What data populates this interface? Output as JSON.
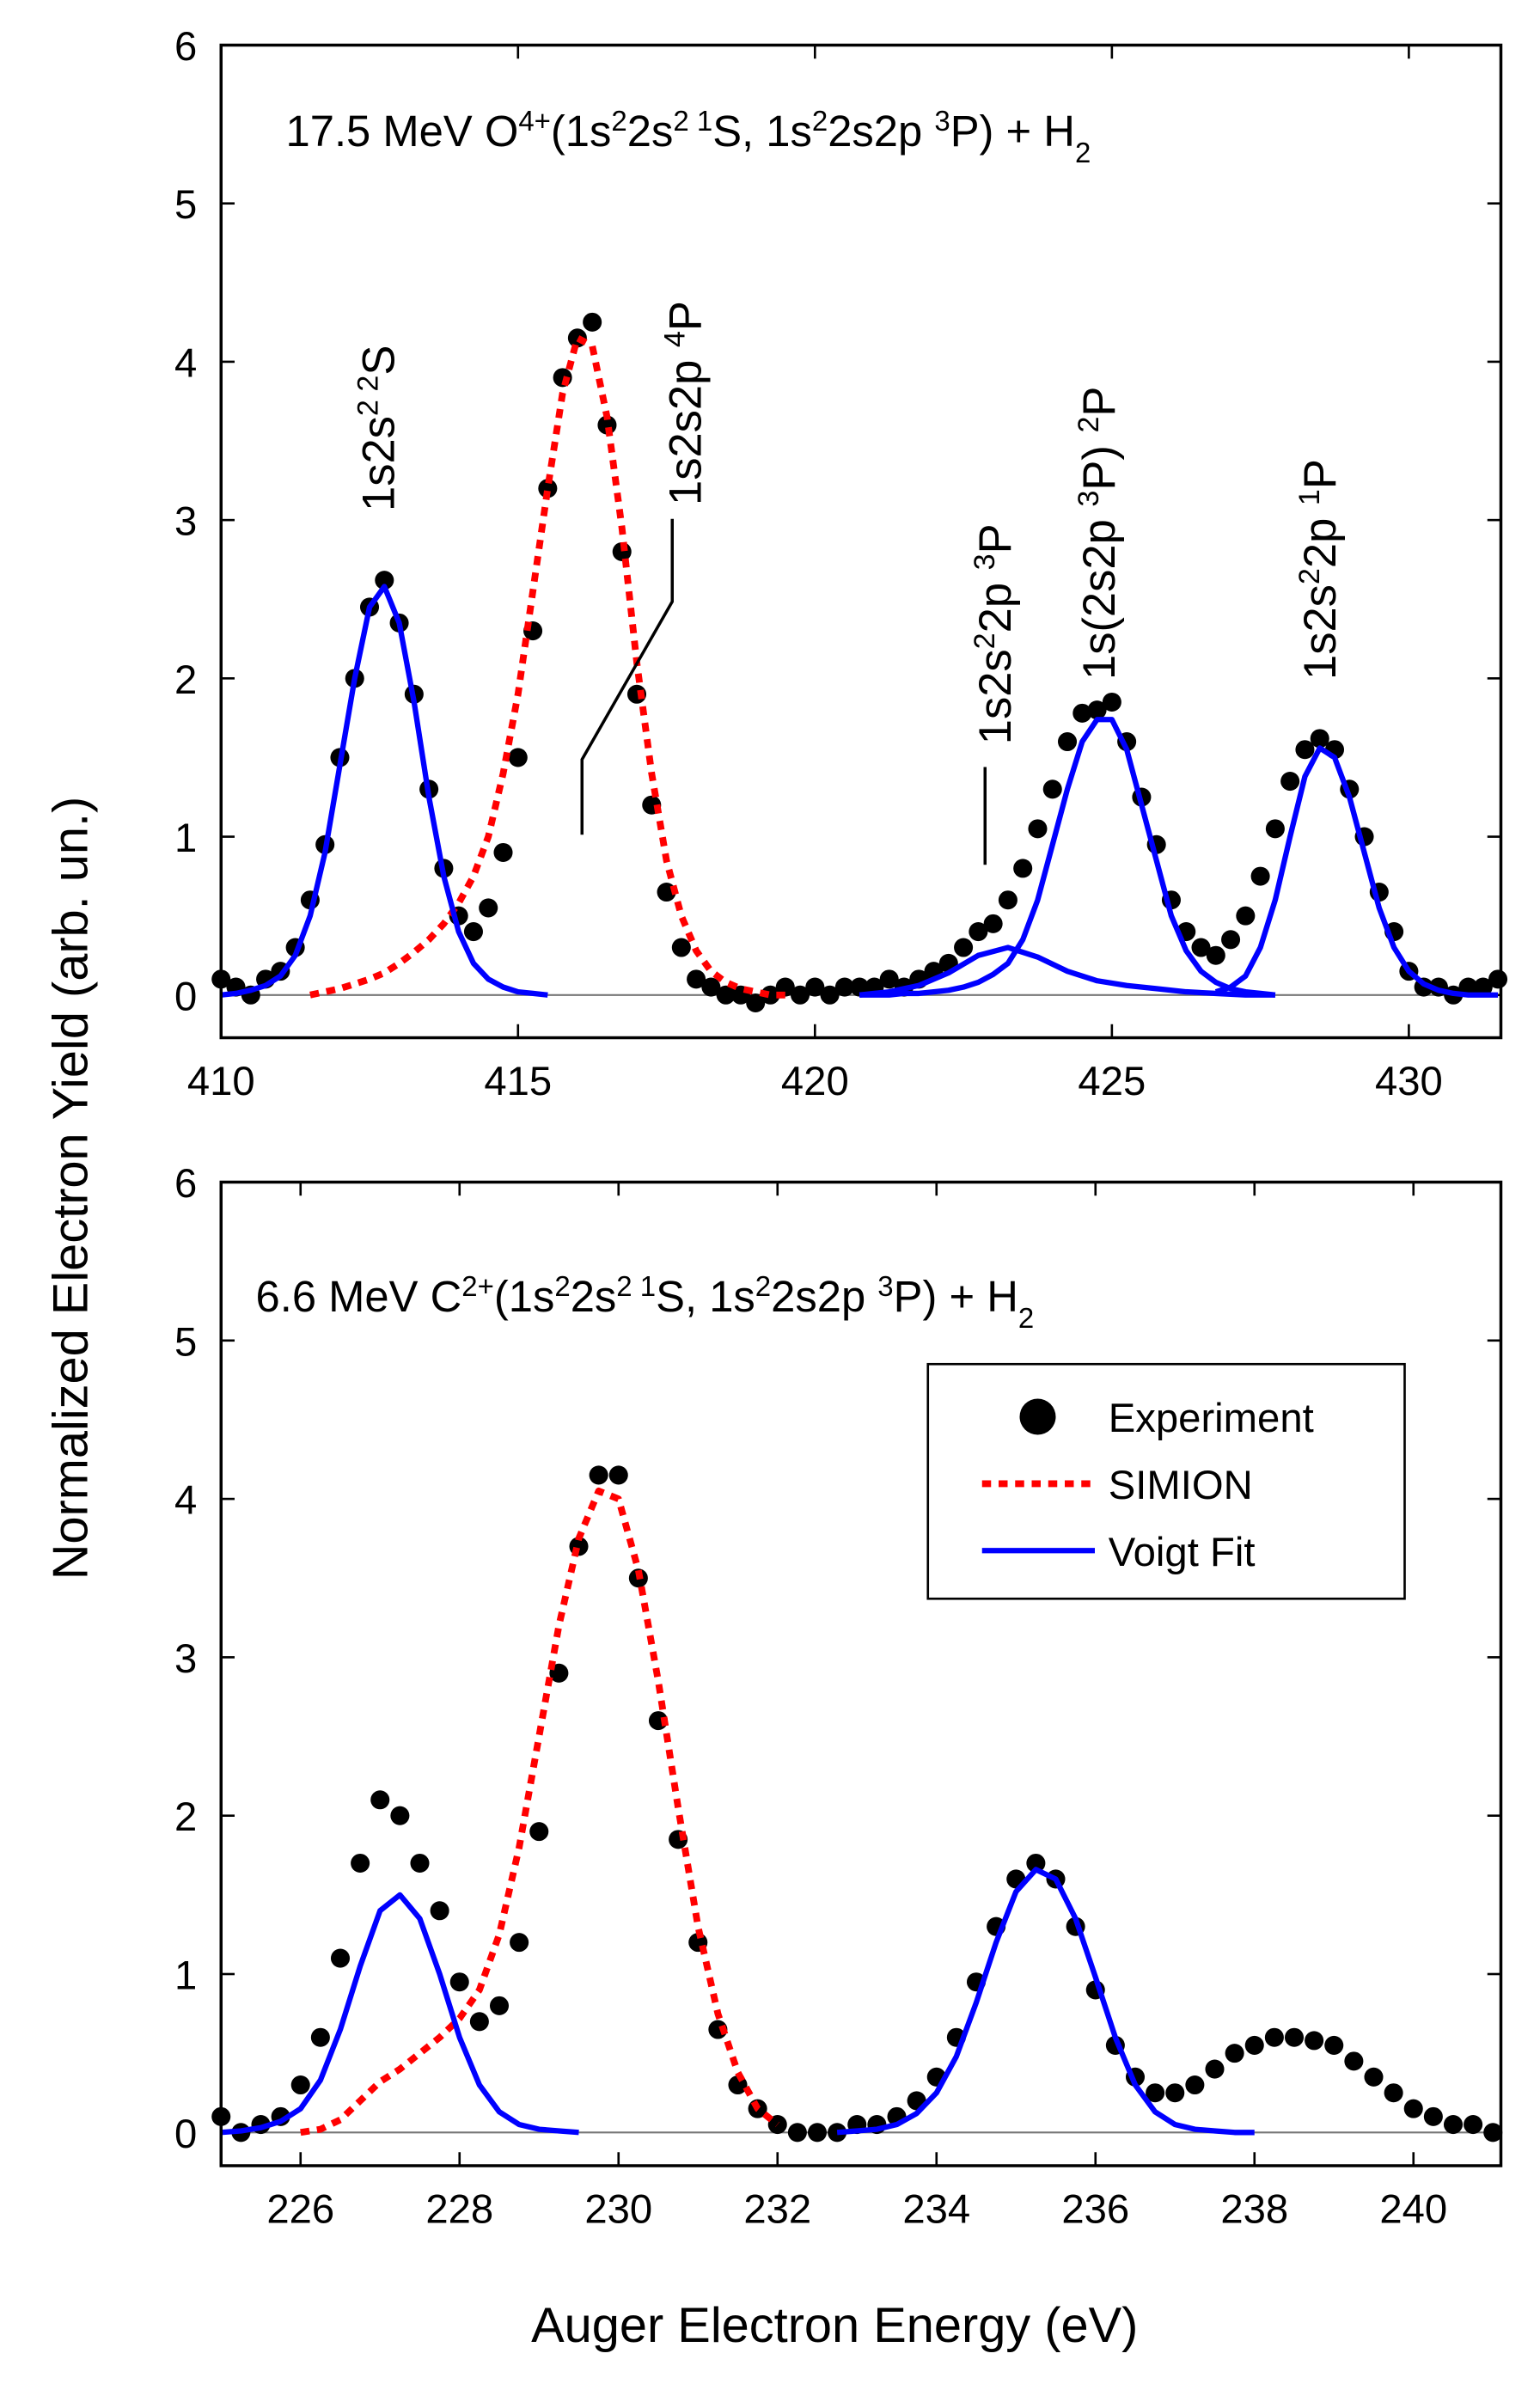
{
  "chart_data": [
    {
      "type": "line",
      "ylabel": "Normalized Electron Yield (arb. un.)",
      "title": [
        {
          "text": "17.5 MeV O"
        },
        {
          "text": "4+",
          "shift": "sup"
        },
        {
          "text": "(1s"
        },
        {
          "text": "2",
          "shift": "sup"
        },
        {
          "text": "2s"
        },
        {
          "text": "2 1",
          "shift": "sup"
        },
        {
          "text": "S, 1s"
        },
        {
          "text": "2",
          "shift": "sup"
        },
        {
          "text": "2s2p "
        },
        {
          "text": "3",
          "shift": "sup"
        },
        {
          "text": "P) + H"
        },
        {
          "text": "2",
          "shift": "sub"
        }
      ],
      "annotations": [
        [
          {
            "text": "1s2s"
          },
          {
            "text": "2 2",
            "shift": "sup"
          },
          {
            "text": "S"
          }
        ],
        [
          {
            "text": "1s2s2p "
          },
          {
            "text": "4",
            "shift": "sup"
          },
          {
            "text": "P"
          }
        ],
        [
          {
            "text": "1s2s"
          },
          {
            "text": "2",
            "shift": "sup"
          },
          {
            "text": "2p "
          },
          {
            "text": "3",
            "shift": "sup"
          },
          {
            "text": "P"
          }
        ],
        [
          {
            "text": "1s(2s2p "
          },
          {
            "text": "3",
            "shift": "sup"
          },
          {
            "text": "P) "
          },
          {
            "text": "2",
            "shift": "sup"
          },
          {
            "text": "P"
          }
        ],
        [
          {
            "text": "1s2s"
          },
          {
            "text": "2",
            "shift": "sup"
          },
          {
            "text": "2p "
          },
          {
            "text": "1",
            "shift": "sup"
          },
          {
            "text": "P"
          }
        ]
      ],
      "xlim": [
        410,
        431.55
      ],
      "xticks": [
        410,
        415,
        420,
        425,
        430
      ],
      "ylim": [
        -0.27,
        6
      ],
      "yticks": [
        0,
        1,
        2,
        3,
        4,
        5,
        6
      ],
      "zero_line": true,
      "series": [
        {
          "kind": "scatter",
          "color": "#000000",
          "x": [
            410,
            410.25,
            410.5,
            410.75,
            411,
            411.25,
            411.5,
            411.75,
            412,
            412.25,
            412.5,
            412.75,
            413,
            413.25,
            413.5,
            413.75,
            414,
            414.25,
            414.5,
            414.75,
            415,
            415.25,
            415.5,
            415.75,
            416,
            416.25,
            416.5,
            416.75,
            417,
            417.25,
            417.5,
            417.75,
            418,
            418.25,
            418.5,
            418.75,
            419,
            419.25,
            419.5,
            419.75,
            420,
            420.25,
            420.5,
            420.75,
            421,
            421.25,
            421.5,
            421.75,
            422,
            422.25,
            422.5,
            422.75,
            423,
            423.25,
            423.5,
            423.75,
            424,
            424.25,
            424.5,
            424.75,
            425,
            425.25,
            425.5,
            425.75,
            426,
            426.25,
            426.5,
            426.75,
            427,
            427.25,
            427.5,
            427.75,
            428,
            428.25,
            428.5,
            428.75,
            429,
            429.25,
            429.5,
            429.75,
            430,
            430.25,
            430.5,
            430.75,
            431,
            431.25,
            431.5
          ],
          "values": [
            0.1,
            0.05,
            0,
            0.1,
            0.15,
            0.3,
            0.6,
            0.95,
            1.5,
            2,
            2.45,
            2.62,
            2.35,
            1.9,
            1.3,
            0.8,
            0.5,
            0.4,
            0.55,
            0.9,
            1.5,
            2.3,
            3.2,
            3.9,
            4.15,
            4.25,
            3.6,
            2.8,
            1.9,
            1.2,
            0.65,
            0.3,
            0.1,
            0.05,
            0,
            0,
            -0.05,
            0,
            0.05,
            0,
            0.05,
            0,
            0.05,
            0.05,
            0.05,
            0.1,
            0.05,
            0.1,
            0.15,
            0.2,
            0.3,
            0.4,
            0.45,
            0.6,
            0.8,
            1.05,
            1.3,
            1.6,
            1.78,
            1.8,
            1.85,
            1.6,
            1.25,
            0.95,
            0.6,
            0.4,
            0.3,
            0.25,
            0.35,
            0.5,
            0.75,
            1.05,
            1.35,
            1.55,
            1.62,
            1.55,
            1.3,
            1,
            0.65,
            0.4,
            0.15,
            0.05,
            0.05,
            0,
            0.05,
            0.05,
            0.1
          ]
        },
        {
          "kind": "dashed",
          "color": "#ff0000",
          "x": [
            411.5,
            411.75,
            412,
            412.25,
            412.5,
            412.75,
            413,
            413.25,
            413.5,
            413.75,
            414,
            414.25,
            414.5,
            414.75,
            415,
            415.25,
            415.5,
            415.75,
            416,
            416.25,
            416.5,
            416.75,
            417,
            417.25,
            417.5,
            417.75,
            418,
            418.25,
            418.5,
            418.75,
            419,
            419.25,
            419.5
          ],
          "values": [
            0,
            0.02,
            0.04,
            0.07,
            0.1,
            0.14,
            0.2,
            0.27,
            0.35,
            0.45,
            0.58,
            0.75,
            1,
            1.4,
            1.9,
            2.55,
            3.2,
            3.8,
            4.15,
            4.1,
            3.65,
            2.95,
            2.1,
            1.4,
            0.85,
            0.5,
            0.28,
            0.15,
            0.08,
            0.04,
            0.02,
            0,
            0
          ]
        },
        {
          "kind": "solid",
          "color": "#0000ff",
          "x": [
            410,
            410.25,
            410.5,
            410.75,
            411,
            411.25,
            411.5,
            411.75,
            412,
            412.25,
            412.5,
            412.75,
            413,
            413.25,
            413.5,
            413.75,
            414,
            414.25,
            414.5,
            414.75,
            415,
            415.25,
            415.5
          ],
          "values": [
            0,
            0.01,
            0.03,
            0.06,
            0.12,
            0.25,
            0.5,
            0.9,
            1.45,
            2,
            2.45,
            2.58,
            2.35,
            1.85,
            1.25,
            0.75,
            0.4,
            0.2,
            0.1,
            0.05,
            0.02,
            0.01,
            0
          ]
        },
        {
          "kind": "solid",
          "color": "#0000ff",
          "x": [
            420.75,
            421.25,
            421.75,
            422.25,
            422.75,
            423.25,
            423.75,
            424.25,
            424.75,
            425.25,
            425.75,
            426.25,
            426.75,
            427.25,
            427.75
          ],
          "values": [
            0,
            0.02,
            0.06,
            0.14,
            0.25,
            0.3,
            0.24,
            0.15,
            0.09,
            0.06,
            0.04,
            0.02,
            0.01,
            0,
            0
          ]
        },
        {
          "kind": "solid",
          "color": "#0000ff",
          "x": [
            420.75,
            421,
            421.25,
            421.5,
            421.75,
            422,
            422.25,
            422.5,
            422.75,
            423,
            423.25,
            423.5,
            423.75,
            424,
            424.25,
            424.5,
            424.75,
            425,
            425.25,
            425.5,
            425.75,
            426,
            426.25,
            426.5,
            426.75,
            427,
            427.25,
            427.5,
            427.75
          ],
          "values": [
            0,
            0,
            0,
            0.01,
            0.01,
            0.02,
            0.03,
            0.05,
            0.08,
            0.13,
            0.2,
            0.35,
            0.6,
            0.95,
            1.3,
            1.6,
            1.74,
            1.74,
            1.55,
            1.2,
            0.85,
            0.5,
            0.28,
            0.15,
            0.08,
            0.04,
            0.02,
            0.01,
            0
          ]
        },
        {
          "kind": "solid",
          "color": "#0000ff",
          "x": [
            426.75,
            427,
            427.25,
            427.5,
            427.75,
            428,
            428.25,
            428.5,
            428.75,
            429,
            429.25,
            429.5,
            429.75,
            430,
            430.25,
            430.5,
            430.75,
            431,
            431.25,
            431.5
          ],
          "values": [
            0.02,
            0.05,
            0.12,
            0.3,
            0.6,
            1,
            1.38,
            1.56,
            1.5,
            1.25,
            0.9,
            0.55,
            0.3,
            0.15,
            0.07,
            0.03,
            0.01,
            0,
            0,
            0
          ]
        }
      ]
    },
    {
      "type": "line",
      "xlabel": "Auger Electron Energy (eV)",
      "title": [
        {
          "text": "6.6 MeV C"
        },
        {
          "text": "2+",
          "shift": "sup"
        },
        {
          "text": "(1s"
        },
        {
          "text": "2",
          "shift": "sup"
        },
        {
          "text": "2s"
        },
        {
          "text": "2 1",
          "shift": "sup"
        },
        {
          "text": "S, 1s"
        },
        {
          "text": "2",
          "shift": "sup"
        },
        {
          "text": "2s2p "
        },
        {
          "text": "3",
          "shift": "sup"
        },
        {
          "text": "P) + H"
        },
        {
          "text": "2",
          "shift": "sub"
        }
      ],
      "xlim": [
        225,
        241.1
      ],
      "xticks": [
        226,
        228,
        230,
        232,
        234,
        236,
        238,
        240
      ],
      "ylim": [
        -0.21,
        6
      ],
      "yticks": [
        0,
        1,
        2,
        3,
        4,
        5,
        6
      ],
      "zero_line": true,
      "legend": "right",
      "series": [
        {
          "name": "Experiment",
          "kind": "scatter",
          "color": "#000000",
          "x": [
            225,
            225.25,
            225.5,
            225.75,
            226,
            226.25,
            226.5,
            226.75,
            227,
            227.25,
            227.5,
            227.75,
            228,
            228.25,
            228.5,
            228.75,
            229,
            229.25,
            229.5,
            229.75,
            230,
            230.25,
            230.5,
            230.75,
            231,
            231.25,
            231.5,
            231.75,
            232,
            232.25,
            232.5,
            232.75,
            233,
            233.25,
            233.5,
            233.75,
            234,
            234.25,
            234.5,
            234.75,
            235,
            235.25,
            235.5,
            235.75,
            236,
            236.25,
            236.5,
            236.75,
            237,
            237.25,
            237.5,
            237.75,
            238,
            238.25,
            238.5,
            238.75,
            239,
            239.25,
            239.5,
            239.75,
            240,
            240.25,
            240.5,
            240.75,
            241
          ],
          "values": [
            0.1,
            0,
            0.05,
            0.1,
            0.3,
            0.6,
            1.1,
            1.7,
            2.1,
            2,
            1.7,
            1.4,
            0.95,
            0.7,
            0.8,
            1.2,
            1.9,
            2.9,
            3.7,
            4.15,
            4.15,
            3.5,
            2.6,
            1.85,
            1.2,
            0.65,
            0.3,
            0.15,
            0.05,
            0,
            0,
            0,
            0.05,
            0.05,
            0.1,
            0.2,
            0.35,
            0.6,
            0.95,
            1.3,
            1.6,
            1.7,
            1.6,
            1.3,
            0.9,
            0.55,
            0.35,
            0.25,
            0.25,
            0.3,
            0.4,
            0.5,
            0.55,
            0.6,
            0.6,
            0.58,
            0.55,
            0.45,
            0.35,
            0.25,
            0.15,
            0.1,
            0.05,
            0.05,
            0
          ]
        },
        {
          "name": "SIMION",
          "kind": "dashed",
          "color": "#ff0000",
          "x": [
            226,
            226.25,
            226.5,
            226.75,
            227,
            227.25,
            227.5,
            227.75,
            228,
            228.25,
            228.5,
            228.75,
            229,
            229.25,
            229.5,
            229.75,
            230,
            230.25,
            230.5,
            230.75,
            231,
            231.25,
            231.5,
            231.75,
            232
          ],
          "values": [
            0,
            0.02,
            0.08,
            0.2,
            0.32,
            0.4,
            0.5,
            0.6,
            0.72,
            0.9,
            1.25,
            1.8,
            2.5,
            3.2,
            3.75,
            4.05,
            4,
            3.55,
            2.85,
            2.05,
            1.3,
            0.75,
            0.38,
            0.15,
            0.05
          ]
        },
        {
          "name": "Voigt Fit",
          "kind": "solid",
          "color": "#0000ff",
          "x": [
            225,
            225.25,
            225.5,
            225.75,
            226,
            226.25,
            226.5,
            226.75,
            227,
            227.25,
            227.5,
            227.75,
            228,
            228.25,
            228.5,
            228.75,
            229,
            229.25,
            229.5
          ],
          "values": [
            0,
            0.01,
            0.03,
            0.07,
            0.15,
            0.33,
            0.65,
            1.05,
            1.4,
            1.5,
            1.35,
            1,
            0.6,
            0.3,
            0.13,
            0.05,
            0.02,
            0.01,
            0
          ]
        },
        {
          "kind": "solid",
          "color": "#0000ff",
          "x": [
            232.75,
            233,
            233.25,
            233.5,
            233.75,
            234,
            234.25,
            234.5,
            234.75,
            235,
            235.25,
            235.5,
            235.75,
            236,
            236.25,
            236.5,
            236.75,
            237,
            237.25,
            237.5,
            237.75,
            238
          ],
          "values": [
            0,
            0.01,
            0.02,
            0.05,
            0.12,
            0.25,
            0.48,
            0.82,
            1.2,
            1.52,
            1.66,
            1.6,
            1.35,
            0.98,
            0.6,
            0.3,
            0.13,
            0.05,
            0.02,
            0.01,
            0,
            0
          ]
        }
      ]
    }
  ]
}
